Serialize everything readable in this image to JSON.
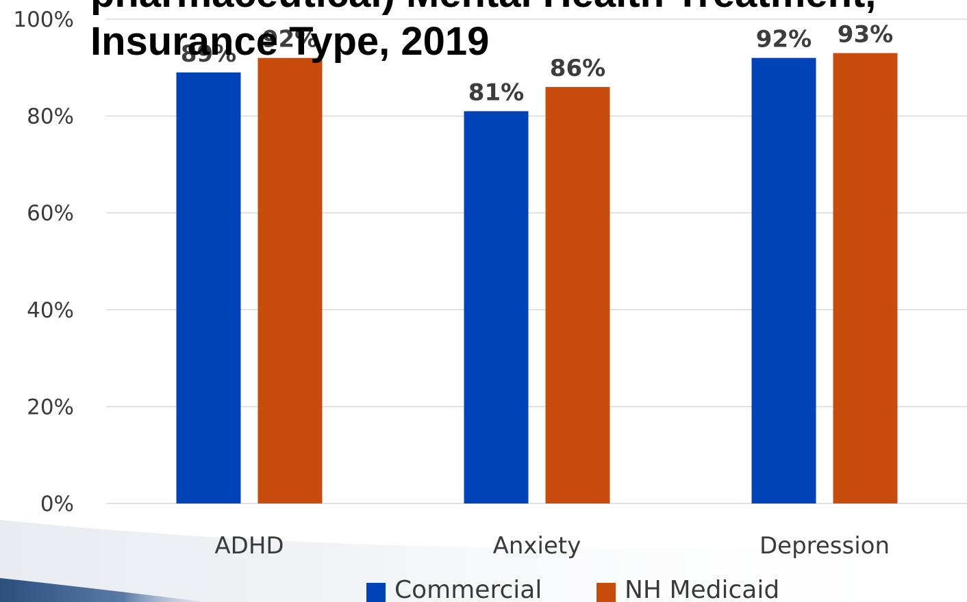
{
  "chart_data": {
    "type": "bar",
    "title_lines": [
      "pharmaceutical) Mental Health Treatment,",
      "Insurance Type, 2019"
    ],
    "categories": [
      "ADHD",
      "Anxiety",
      "Depression"
    ],
    "series": [
      {
        "name": "Commercial",
        "color": "#0042b8",
        "values": [
          89,
          81,
          92
        ],
        "labels": [
          "89%",
          "81%",
          "92%"
        ]
      },
      {
        "name": "NH Medicaid",
        "color": "#c84d0c",
        "values": [
          92,
          86,
          93
        ],
        "labels": [
          "92%",
          "86%",
          "93%"
        ]
      }
    ],
    "y_ticks": [
      "0%",
      "20%",
      "40%",
      "60%",
      "80%",
      "100%"
    ],
    "y_tick_values": [
      0,
      20,
      40,
      60,
      80,
      100
    ],
    "ylim": [
      0,
      100
    ],
    "grid": true,
    "legend_position": "bottom"
  }
}
